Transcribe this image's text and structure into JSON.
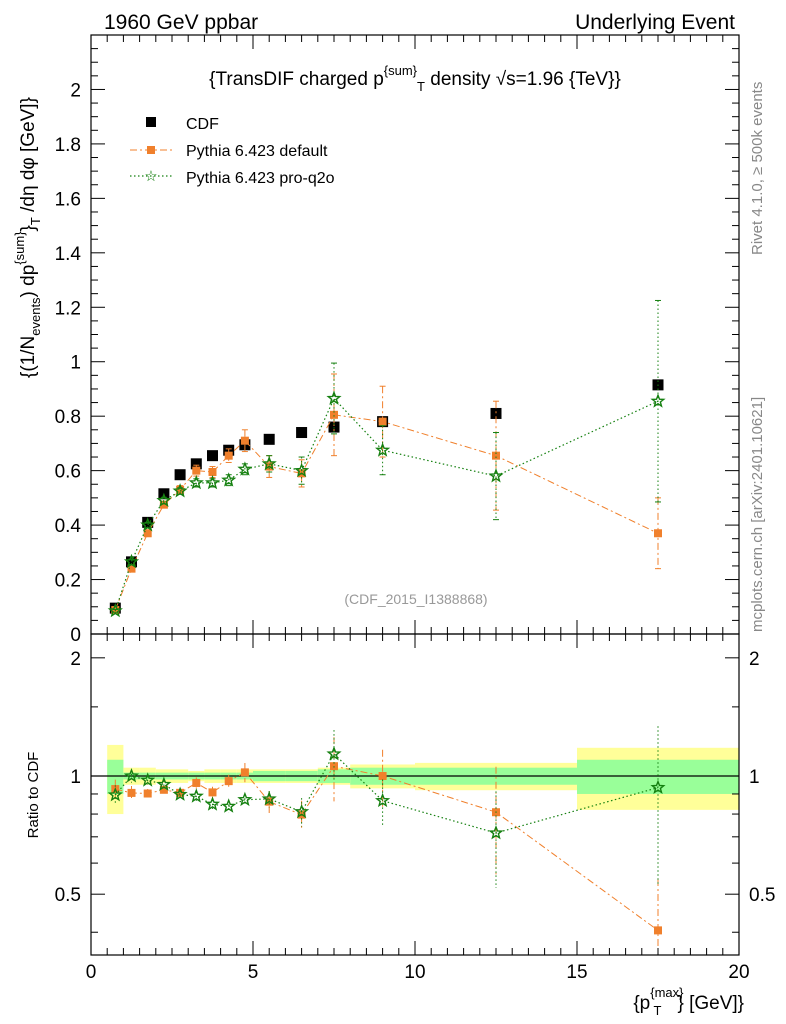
{
  "header": {
    "left": "1960 GeV ppbar",
    "right": "Underlying Event"
  },
  "side_text": {
    "rivet": "Rivet 4.1.0, ≥ 500k events",
    "source": "mcplots.cern.ch [arXiv:2401.10621]"
  },
  "colors": {
    "cdf": "#000000",
    "pythia_default": "#f0802c",
    "pythia_proq2o": "#158010",
    "band_inner": "#99ff99",
    "band_outer": "#ffff99"
  },
  "chart_data": {
    "type": "scatter",
    "title": "{TransDIF charged p{sum}T density √s=1.96 {TeV}}",
    "title_parts": {
      "pre": "{TransDIF charged p",
      "sup": "{sum}",
      "sub": "T",
      "post": " density √s=1.96 {TeV}}"
    },
    "analysis_label": "(CDF_2015_I1388868)",
    "xlabel_parts": {
      "pre": "{p",
      "sup": "{max}",
      "sub": "T",
      "post": "} [GeV]}"
    },
    "ylabel_main": "{(1/N_events) dp^{sum}_T /dη dφ [GeV]}",
    "ylabel_parts": {
      "a": "{(1/N",
      "a_sub": "events",
      "b": ") dp",
      "b_sup": "{sum}",
      "c": "}",
      "c_sub": "T",
      "d": " /dη  dφ [GeV]}"
    },
    "ylabel_ratio": "Ratio to CDF",
    "xlim": [
      0,
      20
    ],
    "ylim_main": [
      0,
      2.2
    ],
    "ylim_ratio": [
      0.35,
      2.3
    ],
    "x_ticks": [
      "0",
      "5",
      "10",
      "15",
      "20"
    ],
    "y_ticks_main": [
      "0",
      "0.2",
      "0.4",
      "0.6",
      "0.8",
      "1",
      "1.2",
      "1.4",
      "1.6",
      "1.8",
      "2"
    ],
    "y_ticks_ratio": [
      "0.5",
      "1",
      "2"
    ],
    "bins": [
      [
        0.5,
        1.0
      ],
      [
        1.0,
        1.5
      ],
      [
        1.5,
        2.0
      ],
      [
        2.0,
        2.5
      ],
      [
        2.5,
        3.0
      ],
      [
        3.0,
        3.5
      ],
      [
        3.5,
        4.0
      ],
      [
        4.0,
        4.5
      ],
      [
        4.5,
        5.0
      ],
      [
        5.0,
        6.0
      ],
      [
        6.0,
        7.0
      ],
      [
        7.0,
        8.0
      ],
      [
        8.0,
        10.0
      ],
      [
        10.0,
        15.0
      ],
      [
        15.0,
        20.0
      ]
    ],
    "x": [
      0.75,
      1.25,
      1.75,
      2.25,
      2.75,
      3.25,
      3.75,
      4.25,
      4.75,
      5.5,
      6.5,
      7.5,
      9.0,
      12.5,
      17.5
    ],
    "ref_band": {
      "inner": [
        0.1,
        0.02,
        0.02,
        0.02,
        0.02,
        0.02,
        0.02,
        0.02,
        0.02,
        0.03,
        0.03,
        0.04,
        0.05,
        0.05,
        0.1
      ],
      "outer": [
        0.2,
        0.05,
        0.05,
        0.04,
        0.04,
        0.03,
        0.04,
        0.04,
        0.04,
        0.04,
        0.04,
        0.05,
        0.07,
        0.08,
        0.18
      ]
    },
    "legend": [
      "CDF",
      "Pythia 6.423 default",
      "Pythia 6.423 pro-q2o"
    ],
    "series": [
      {
        "name": "CDF",
        "key": "cdf",
        "values": [
          0.095,
          0.265,
          0.41,
          0.515,
          0.585,
          0.625,
          0.655,
          0.675,
          0.695,
          0.715,
          0.74,
          0.76,
          0.78,
          0.81,
          0.915
        ]
      },
      {
        "name": "Pythia 6.423 default",
        "key": "pythia_default",
        "values": [
          0.088,
          0.24,
          0.37,
          0.475,
          0.53,
          0.6,
          0.595,
          0.655,
          0.71,
          0.615,
          0.59,
          0.805,
          0.78,
          0.655,
          0.37
        ],
        "errors": [
          0.005,
          0.01,
          0.01,
          0.012,
          0.015,
          0.02,
          0.02,
          0.025,
          0.04,
          0.04,
          0.05,
          0.15,
          0.13,
          0.2,
          0.13
        ]
      },
      {
        "name": "Pythia 6.423 pro-q2o",
        "key": "pythia_proq2o",
        "values": [
          0.085,
          0.265,
          0.4,
          0.49,
          0.525,
          0.555,
          0.555,
          0.565,
          0.605,
          0.625,
          0.6,
          0.865,
          0.675,
          0.58,
          0.855
        ],
        "errors": [
          0.005,
          0.01,
          0.01,
          0.012,
          0.012,
          0.015,
          0.015,
          0.02,
          0.02,
          0.03,
          0.05,
          0.13,
          0.09,
          0.16,
          0.37
        ]
      }
    ]
  }
}
